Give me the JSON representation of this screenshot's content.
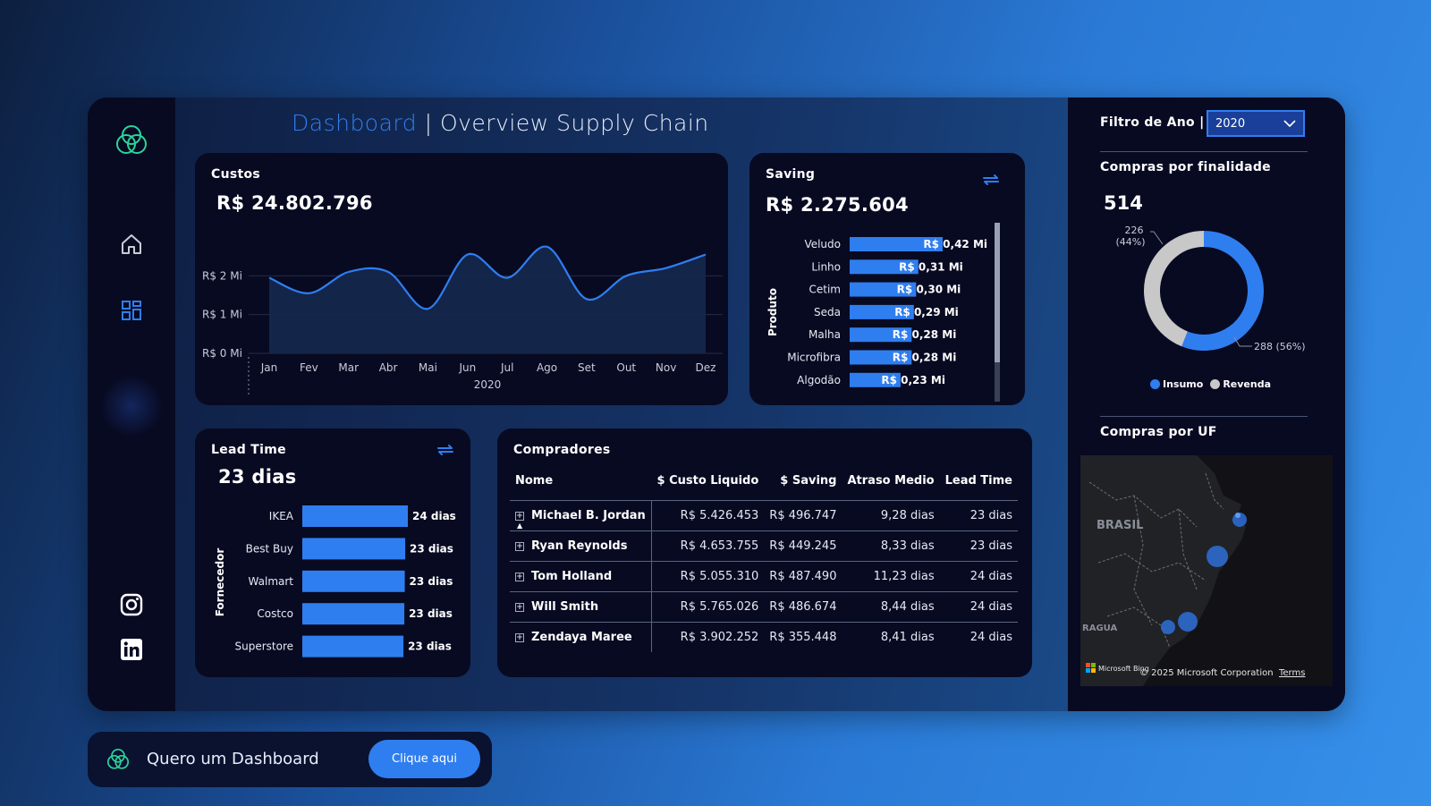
{
  "title": {
    "highlight": "Dashboard",
    "rest": " | Overview Supply Chain"
  },
  "sidebar": {
    "items": [
      "logo",
      "home",
      "dashboard",
      "instagram",
      "linkedin"
    ]
  },
  "custos": {
    "label": "Custos",
    "value": "R$ 24.802.796",
    "chart_data": {
      "type": "area",
      "x": [
        "Jan",
        "Fev",
        "Mar",
        "Abr",
        "Mai",
        "Jun",
        "Jul",
        "Ago",
        "Set",
        "Out",
        "Nov",
        "Dez"
      ],
      "values": [
        1.95,
        1.55,
        2.1,
        2.1,
        1.15,
        2.55,
        1.95,
        2.75,
        1.4,
        2.0,
        2.2,
        2.55
      ],
      "xlabel": "2020",
      "yticks": [
        "R$ 0 Mi",
        "R$ 1 Mi",
        "R$ 2 Mi"
      ],
      "ylim": [
        0,
        3.0
      ],
      "color": "#2f7ef0"
    }
  },
  "saving": {
    "label": "Saving",
    "value": "R$ 2.275.604",
    "ylabel": "Produto",
    "chart_data": {
      "type": "bar",
      "categories": [
        "Veludo",
        "Linho",
        "Cetim",
        "Seda",
        "Malha",
        "Microfibra",
        "Algodão"
      ],
      "values": [
        0.42,
        0.31,
        0.3,
        0.29,
        0.28,
        0.28,
        0.23
      ],
      "labels": [
        "R$ 0,42 Mi",
        "R$ 0,31 Mi",
        "R$ 0,30 Mi",
        "R$ 0,29 Mi",
        "R$ 0,28 Mi",
        "R$ 0,28 Mi",
        "R$ 0,23 Mi"
      ],
      "color": "#2f7ef0"
    }
  },
  "leadtime": {
    "label": "Lead Time",
    "value": "23 dias",
    "ylabel": "Fornecedor",
    "chart_data": {
      "type": "bar",
      "categories": [
        "IKEA",
        "Best Buy",
        "Walmart",
        "Costco",
        "Superstore"
      ],
      "values": [
        24.0,
        23.4,
        23.3,
        23.2,
        23.0
      ],
      "labels": [
        "24 dias",
        "23 dias",
        "23 dias",
        "23 dias",
        "23 dias"
      ],
      "color": "#2f7ef0"
    }
  },
  "compradores": {
    "label": "Compradores",
    "columns": [
      "Nome",
      "$ Custo Liquido",
      "$ Saving",
      "Atraso Medio",
      "Lead Time"
    ],
    "rows": [
      {
        "nome": "Michael B. Jordan",
        "custo": "R$ 5.426.453",
        "saving": "R$ 496.747",
        "atraso": "9,28 dias",
        "lead": "23 dias"
      },
      {
        "nome": "Ryan Reynolds",
        "custo": "R$ 4.653.755",
        "saving": "R$ 449.245",
        "atraso": "8,33 dias",
        "lead": "23 dias"
      },
      {
        "nome": "Tom Holland",
        "custo": "R$ 5.055.310",
        "saving": "R$ 487.490",
        "atraso": "11,23 dias",
        "lead": "24 dias"
      },
      {
        "nome": "Will Smith",
        "custo": "R$ 5.765.026",
        "saving": "R$ 486.674",
        "atraso": "8,44 dias",
        "lead": "24 dias"
      },
      {
        "nome": "Zendaya Maree",
        "custo": "R$ 3.902.252",
        "saving": "R$ 355.448",
        "atraso": "8,41 dias",
        "lead": "24 dias"
      }
    ]
  },
  "filter": {
    "label": "Filtro de Ano |",
    "value": "2020"
  },
  "finalidade": {
    "label": "Compras por finalidade",
    "total": "514",
    "chart_data": {
      "type": "pie",
      "categories": [
        "Insumo",
        "Revenda"
      ],
      "values": [
        288,
        226
      ],
      "labels": [
        "288 (56%)",
        "226 (44%)"
      ],
      "colors": [
        "#2f7ef0",
        "#c8c8c8"
      ]
    },
    "legend": [
      "Insumo",
      "Revenda"
    ]
  },
  "uf": {
    "label": "Compras por UF",
    "map_label_brasil": "BRASIL",
    "map_label_uruguai": "RAGUA",
    "attribution": "© 2025 Microsoft Corporation",
    "terms": "Terms",
    "bing": "Microsoft Bing"
  },
  "cta": {
    "text": "Quero um Dashboard",
    "button": "Clique aqui"
  }
}
